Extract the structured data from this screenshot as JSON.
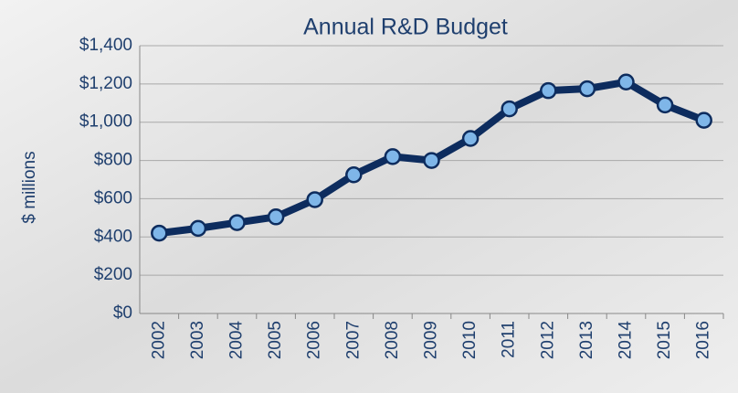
{
  "chart_data": {
    "type": "line",
    "title": "Annual R&D Budget",
    "y_label": "$ millions",
    "categories": [
      "2002",
      "2003",
      "2004",
      "2005",
      "2006",
      "2007",
      "2008",
      "2009",
      "2010",
      "2011",
      "2012",
      "2013",
      "2014",
      "2015",
      "2016"
    ],
    "values": [
      420,
      445,
      475,
      505,
      595,
      725,
      820,
      800,
      915,
      1070,
      1165,
      1175,
      1210,
      1090,
      1010
    ],
    "color": "#0d2c5e",
    "marker_color": "#7fb6e8",
    "ylim": [
      0,
      1400
    ],
    "yticks": [
      {
        "value": 0,
        "label": "$0"
      },
      {
        "value": 200,
        "label": "$200"
      },
      {
        "value": 400,
        "label": "$400"
      },
      {
        "value": 600,
        "label": "$600"
      },
      {
        "value": 800,
        "label": "$800"
      },
      {
        "value": 1000,
        "label": "$1,000"
      },
      {
        "value": 1200,
        "label": "$1,200"
      },
      {
        "value": 1400,
        "label": "$1,400"
      }
    ],
    "grid": true
  }
}
